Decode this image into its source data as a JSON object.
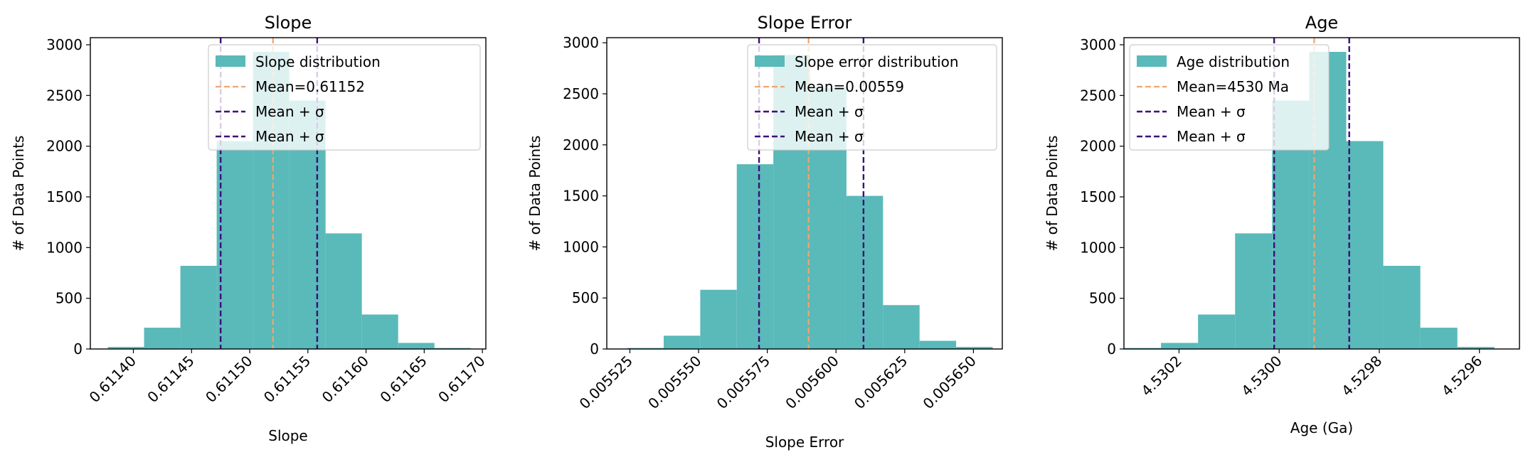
{
  "colors": {
    "bar": "#5ab9b9",
    "mean_line": "#f2a56b",
    "sigma_line": "#3d0f7a",
    "axes": "#000000",
    "legend_border": "#cccccc"
  },
  "chart_data": [
    {
      "type": "bar",
      "title": "Slope",
      "xlabel": "Slope",
      "ylabel": "# of Data Points",
      "xlim": [
        0.611363,
        0.611703
      ],
      "ylim": [
        0,
        3070
      ],
      "x_inverted": false,
      "x_ticks": [
        0.6114,
        0.61145,
        0.6115,
        0.61155,
        0.6116,
        0.61165,
        0.6117
      ],
      "x_tick_labels": [
        "0.61140",
        "0.61145",
        "0.61150",
        "0.61155",
        "0.61160",
        "0.61165",
        "0.61170"
      ],
      "y_ticks": [
        0,
        500,
        1000,
        1500,
        2000,
        2500,
        3000
      ],
      "y_tick_labels": [
        "0",
        "500",
        "1000",
        "1500",
        "2000",
        "2500",
        "3000"
      ],
      "bin_edges": [
        0.611378,
        0.6114092,
        0.6114404,
        0.6114716,
        0.6115028,
        0.611534,
        0.6115652,
        0.6115964,
        0.6116276,
        0.6116588,
        0.61169
      ],
      "counts": [
        20,
        210,
        820,
        2050,
        2930,
        2450,
        1140,
        340,
        60,
        10
      ],
      "mean": 0.61152,
      "sigma_lines": [
        0.611475,
        0.611558
      ],
      "legend": {
        "position": "upper right",
        "entries": [
          "Slope distribution",
          "Mean=0.61152",
          "Mean + σ",
          "Mean + σ"
        ]
      }
    },
    {
      "type": "bar",
      "title": "Slope Error",
      "xlabel": "Slope Error",
      "ylabel": "# of Data Points",
      "xlim": [
        0.0055166,
        0.0056605
      ],
      "ylim": [
        0,
        3050
      ],
      "x_inverted": false,
      "x_ticks": [
        0.005525,
        0.00555,
        0.005575,
        0.0056,
        0.005625,
        0.00565
      ],
      "x_tick_labels": [
        "0.005525",
        "0.005550",
        "0.005575",
        "0.005600",
        "0.005625",
        "0.005650"
      ],
      "y_ticks": [
        0,
        500,
        1000,
        1500,
        2000,
        2500,
        3000
      ],
      "y_tick_labels": [
        "0",
        "500",
        "1000",
        "1500",
        "2000",
        "2500",
        "3000"
      ],
      "bin_edges": [
        0.005524,
        0.0055373,
        0.0055506,
        0.0055639,
        0.0055772,
        0.0055905,
        0.0056038,
        0.0056171,
        0.0056304,
        0.0056437,
        0.005657
      ],
      "counts": [
        10,
        130,
        580,
        1810,
        2880,
        2560,
        1500,
        430,
        80,
        20
      ],
      "mean": 0.00559,
      "sigma_lines": [
        0.005572,
        0.00561
      ],
      "legend": {
        "position": "upper right",
        "entries": [
          "Slope error distribution",
          "Mean=0.00559",
          "Mean + σ",
          "Mean + σ"
        ]
      }
    },
    {
      "type": "bar",
      "title": "Age",
      "xlabel": "Age (Ga)",
      "ylabel": "# of Data Points",
      "xlim": [
        4.53031,
        4.52952
      ],
      "ylim": [
        0,
        3070
      ],
      "x_inverted": true,
      "x_ticks": [
        4.5302,
        4.53,
        4.5298,
        4.5296
      ],
      "x_tick_labels": [
        "4.5302",
        "4.5300",
        "4.5298",
        "4.5296"
      ],
      "y_ticks": [
        0,
        500,
        1000,
        1500,
        2000,
        2500,
        3000
      ],
      "y_tick_labels": [
        "0",
        "500",
        "1000",
        "1500",
        "2000",
        "2500",
        "3000"
      ],
      "bin_edges": [
        4.53031,
        4.530236,
        4.530162,
        4.530088,
        4.530014,
        4.52994,
        4.529866,
        4.529792,
        4.529718,
        4.529644,
        4.52957
      ],
      "counts": [
        10,
        60,
        340,
        1140,
        2450,
        2930,
        2050,
        820,
        210,
        20
      ],
      "mean": 4.52993,
      "sigma_lines": [
        4.53001,
        4.52986
      ],
      "legend": {
        "position": "upper left",
        "entries": [
          "Age distribution",
          "Mean=4530 Ma",
          "Mean + σ",
          "Mean + σ"
        ]
      }
    }
  ]
}
